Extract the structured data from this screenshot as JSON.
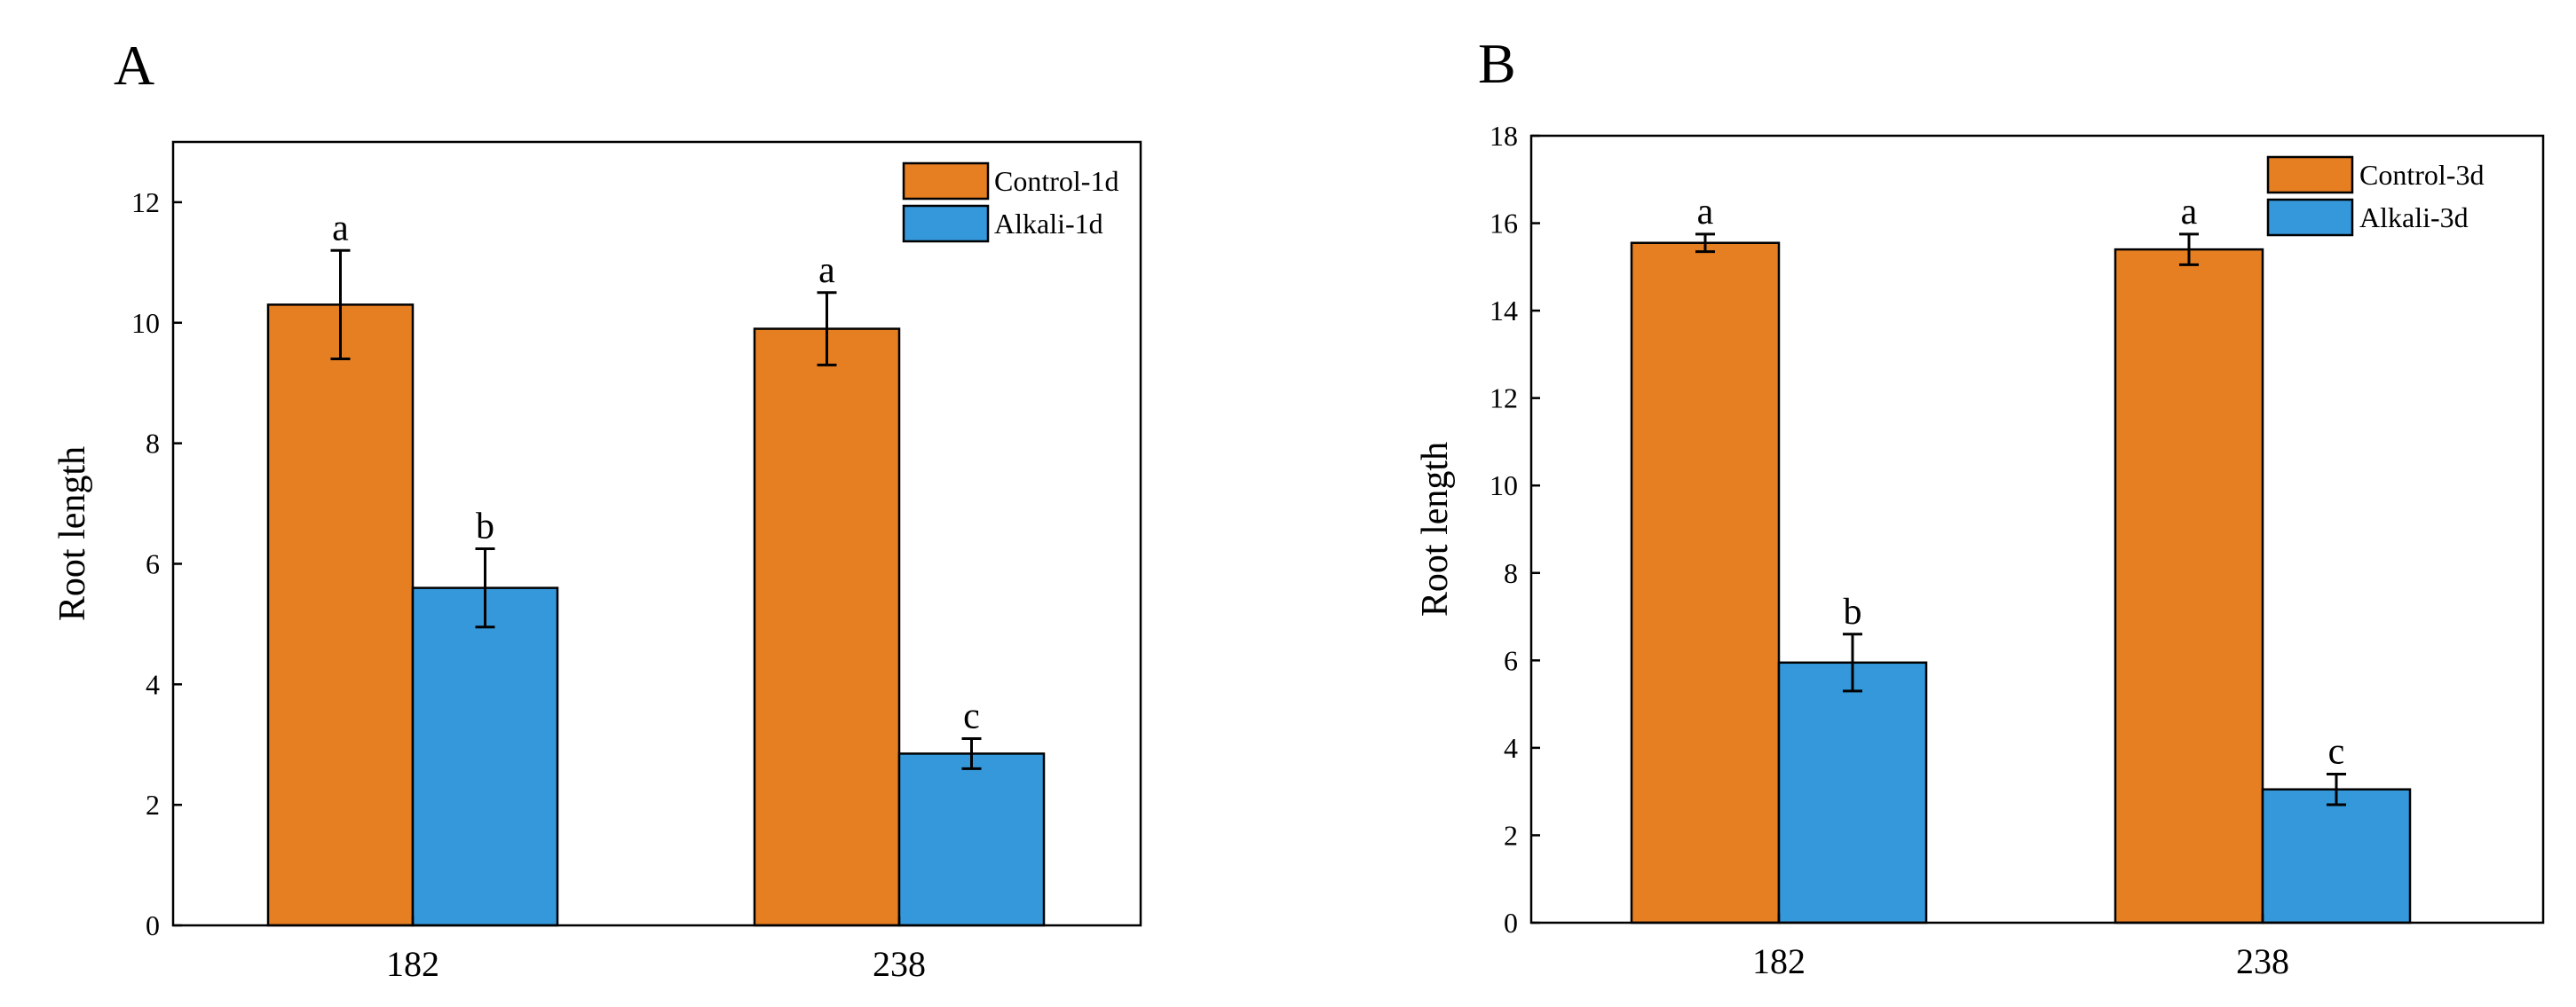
{
  "chart_data": [
    {
      "panel_label": "A",
      "type": "bar",
      "xlabel": "",
      "ylabel": "Root length",
      "ylim": [
        0,
        13
      ],
      "yticks": [
        0,
        2,
        4,
        6,
        8,
        10,
        12
      ],
      "categories": [
        "182",
        "238"
      ],
      "legend_position": "top-right",
      "grid": false,
      "series": [
        {
          "name": "Control-1d",
          "color": "#E67E22",
          "values": [
            10.3,
            9.9
          ],
          "errors": [
            0.9,
            0.6
          ],
          "letters": [
            "a",
            "a"
          ]
        },
        {
          "name": "Alkali-1d",
          "color": "#3498DB",
          "values": [
            5.6,
            2.85
          ],
          "errors": [
            0.65,
            0.25
          ],
          "letters": [
            "b",
            "c"
          ]
        }
      ]
    },
    {
      "panel_label": "B",
      "type": "bar",
      "xlabel": "",
      "ylabel": "Root length",
      "ylim": [
        0,
        18
      ],
      "yticks": [
        0,
        2,
        4,
        6,
        8,
        10,
        12,
        14,
        16,
        18
      ],
      "categories": [
        "182",
        "238"
      ],
      "legend_position": "top-right",
      "grid": false,
      "series": [
        {
          "name": "Control-3d",
          "color": "#E67E22",
          "values": [
            15.55,
            15.4
          ],
          "errors": [
            0.2,
            0.35
          ],
          "letters": [
            "a",
            "a"
          ]
        },
        {
          "name": "Alkali-3d",
          "color": "#3498DB",
          "values": [
            5.95,
            3.05
          ],
          "errors": [
            0.65,
            0.35
          ],
          "letters": [
            "b",
            "c"
          ]
        }
      ]
    }
  ]
}
